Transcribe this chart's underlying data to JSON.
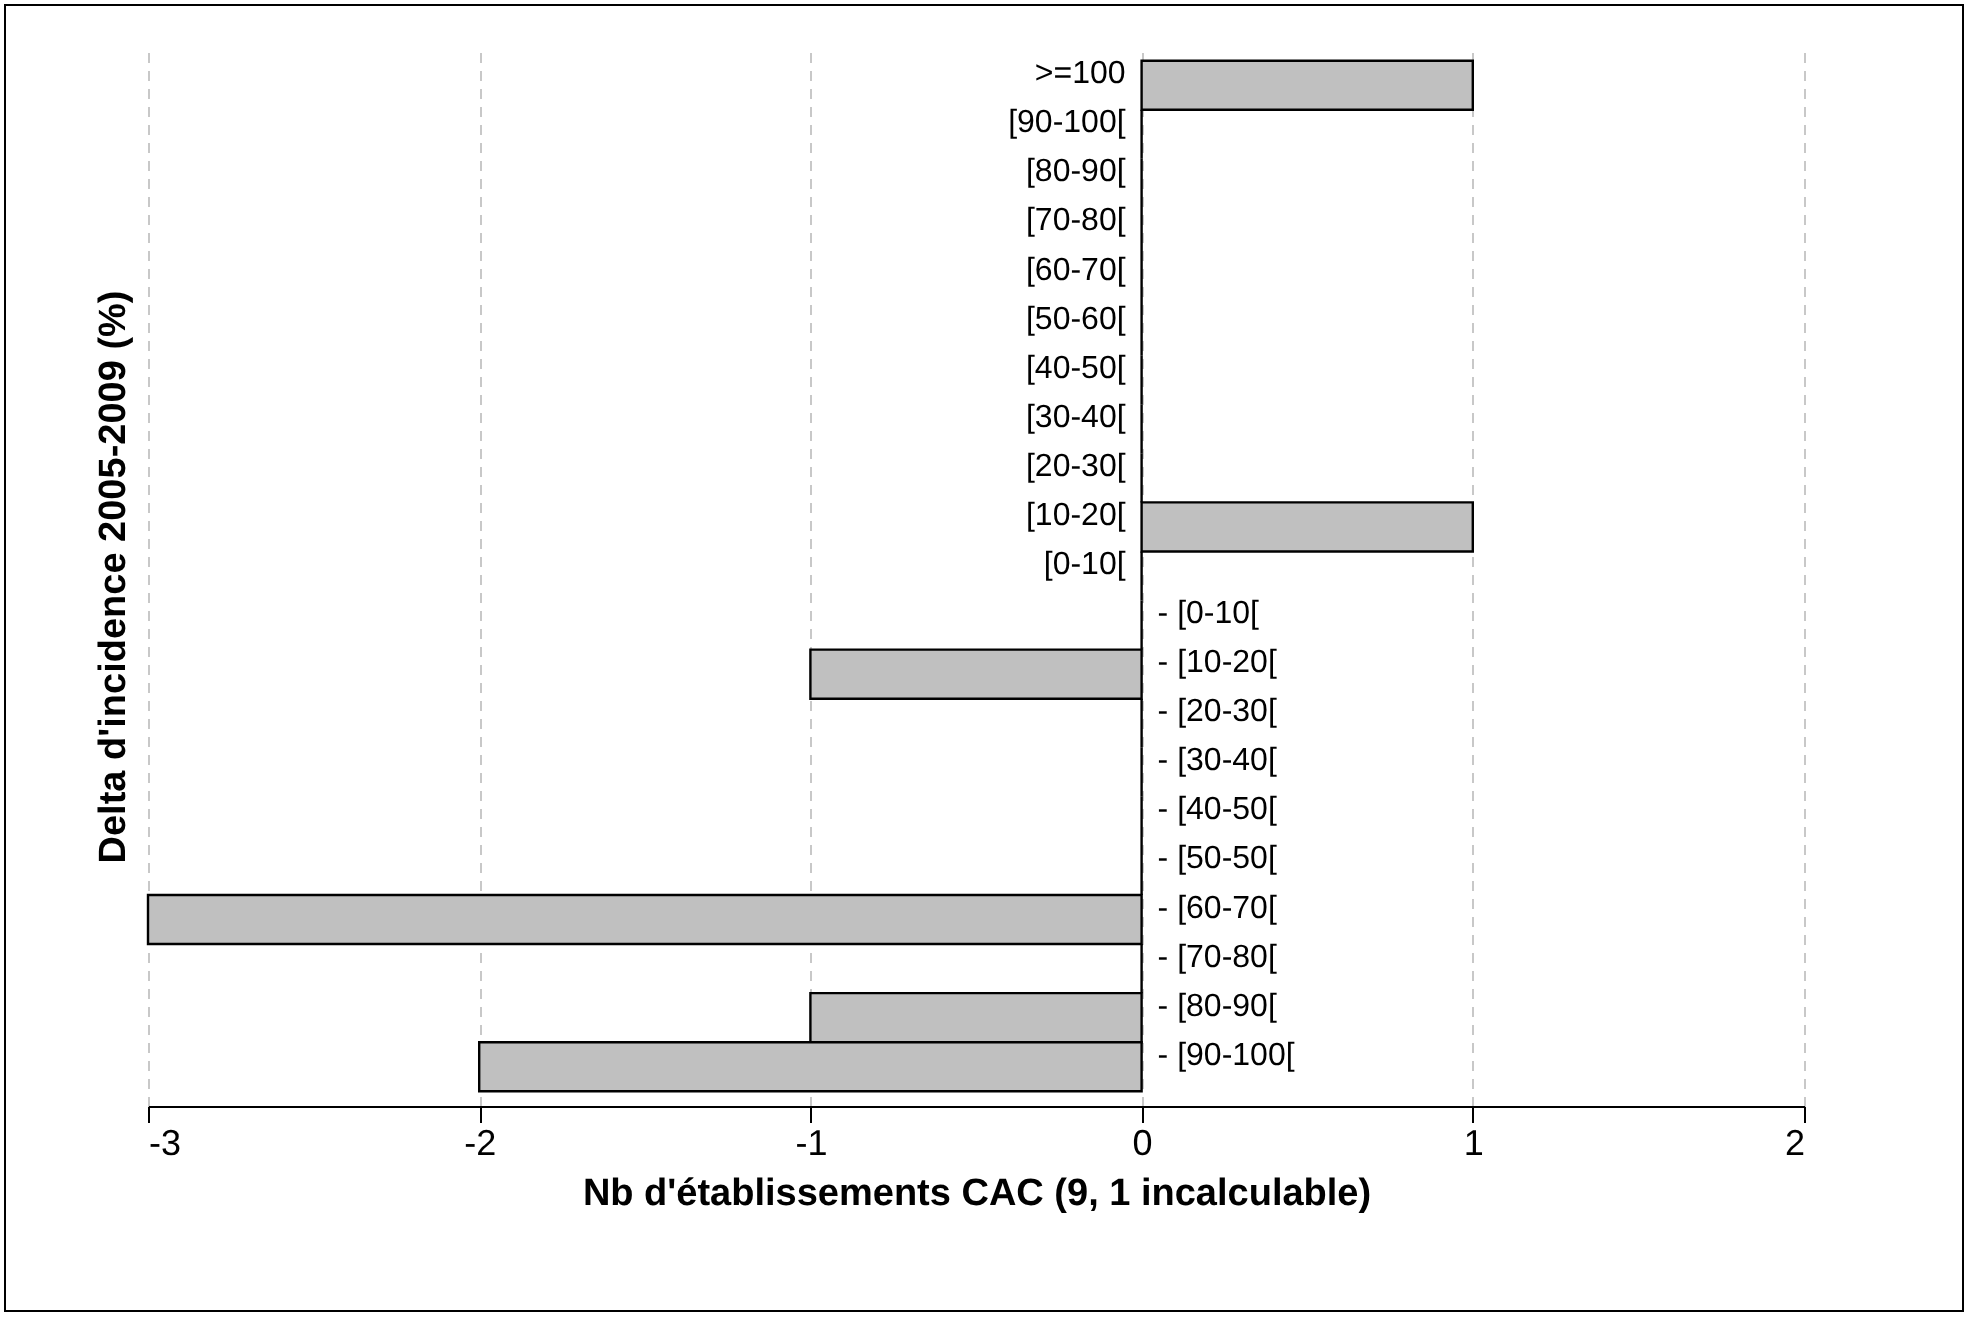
{
  "chart_data": {
    "type": "bar",
    "orientation": "horizontal",
    "xlabel": "Nb d'établissements CAC (9, 1 incalculable)",
    "ylabel": "Delta d'incidence 2005-2009 (%)",
    "categories": [
      ">=100",
      "[90-100[",
      "[80-90[",
      "[70-80[",
      "[60-70[",
      "[50-60[",
      "[40-50[",
      "[30-40[",
      "[20-30[",
      "[10-20[",
      "[0-10[",
      "- [0-10[",
      "- [10-20[",
      "- [20-30[",
      "- [30-40[",
      "- [40-50[",
      "- [50-50[",
      "- [60-70[",
      "- [70-80[",
      "- [80-90[",
      "- [90-100["
    ],
    "values": [
      1,
      0,
      0,
      0,
      0,
      0,
      0,
      0,
      0,
      1,
      0,
      0,
      -1,
      0,
      0,
      0,
      0,
      -3,
      0,
      -1,
      -2
    ],
    "color": "#c0c0c0",
    "xlim": [
      -3,
      2
    ],
    "xticks": [
      -3,
      -2,
      -1,
      0,
      1,
      2
    ],
    "grid": "x"
  }
}
